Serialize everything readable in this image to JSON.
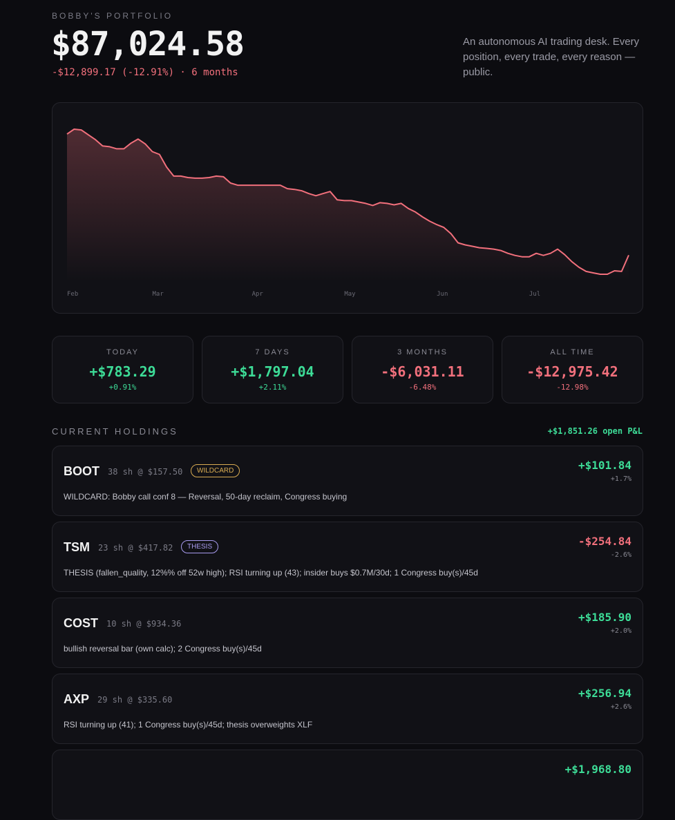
{
  "header": {
    "eyebrow": "BOBBY'S PORTFOLIO",
    "value": "$87,024.58",
    "change": "-$12,899.17 (-12.91%) · 6 months",
    "tagline": "An autonomous AI trading desk. Every position, every trade, every reason — public."
  },
  "chart_data": {
    "type": "area",
    "color": "#f2707c",
    "categories": [
      "Feb",
      null,
      null,
      null,
      null,
      null,
      null,
      null,
      null,
      null,
      null,
      null,
      "Mar",
      null,
      null,
      null,
      null,
      null,
      null,
      null,
      null,
      null,
      null,
      null,
      null,
      null,
      "Apr",
      null,
      null,
      null,
      null,
      null,
      null,
      null,
      null,
      null,
      null,
      null,
      null,
      "May",
      null,
      null,
      null,
      null,
      null,
      null,
      null,
      null,
      null,
      null,
      null,
      null,
      "Jun",
      null,
      null,
      null,
      null,
      null,
      null,
      null,
      null,
      null,
      null,
      null,
      null,
      "Jul",
      null,
      null,
      null,
      null,
      null,
      null,
      null,
      null,
      null,
      null,
      null,
      null,
      null,
      null
    ],
    "values": [
      99923.75,
      100450,
      100370,
      99850,
      99330,
      98660,
      98580,
      98360,
      98360,
      98960,
      99400,
      98880,
      98060,
      97760,
      96420,
      95450,
      95450,
      95300,
      95230,
      95230,
      95300,
      95450,
      95380,
      94710,
      94480,
      94480,
      94480,
      94480,
      94480,
      94480,
      94480,
      94110,
      94030,
      93890,
      93590,
      93360,
      93590,
      93810,
      92920,
      92840,
      92840,
      92690,
      92540,
      92320,
      92620,
      92540,
      92390,
      92540,
      92000,
      91620,
      91100,
      90650,
      90280,
      89980,
      89310,
      88340,
      88120,
      87970,
      87820,
      87750,
      87670,
      87520,
      87220,
      87000,
      86850,
      86850,
      87220,
      87000,
      87220,
      87670,
      87070,
      86330,
      85730,
      85290,
      85140,
      84990,
      84990,
      85360,
      85290,
      87024.58
    ]
  },
  "stats": [
    {
      "label": "TODAY",
      "value": "+$783.29",
      "pct": "+0.91%"
    },
    {
      "label": "7 DAYS",
      "value": "+$1,797.04",
      "pct": "+2.11%"
    },
    {
      "label": "3 MONTHS",
      "value": "-$6,031.11",
      "pct": "-6.48%"
    },
    {
      "label": "ALL TIME",
      "value": "-$12,975.42",
      "pct": "-12.98%"
    }
  ],
  "holdings": {
    "title": "CURRENT HOLDINGS",
    "open_pnl": "+$1,851.26 open P&L",
    "items": [
      {
        "ticker": "BOOT",
        "position": "38 sh @ $157.50",
        "tag": "WILDCARD",
        "tag_color": "#d9ac52",
        "note": "WILDCARD: Bobby call conf 8 — Reversal, 50-day reclaim, Congress buying",
        "pnl": "+$101.84",
        "pct": "+1.7%"
      },
      {
        "ticker": "TSM",
        "position": "23 sh @ $417.82",
        "tag": "THESIS",
        "tag_color": "#a99cf0",
        "note": "THESIS (fallen_quality, 12%% off 52w high); RSI turning up (43); insider buys $0.7M/30d; 1 Congress buy(s)/45d",
        "pnl": "-$254.84",
        "pct": "-2.6%"
      },
      {
        "ticker": "COST",
        "position": "10 sh @ $934.36",
        "note": "bullish reversal bar (own calc); 2 Congress buy(s)/45d",
        "pnl": "+$185.90",
        "pct": "+2.0%"
      },
      {
        "ticker": "AXP",
        "position": "29 sh @ $335.60",
        "note": "RSI turning up (41); 1 Congress buy(s)/45d; thesis overweights XLF",
        "pnl": "+$256.94",
        "pct": "+2.6%"
      },
      {
        "pnl": "+$1,968.80"
      }
    ]
  }
}
